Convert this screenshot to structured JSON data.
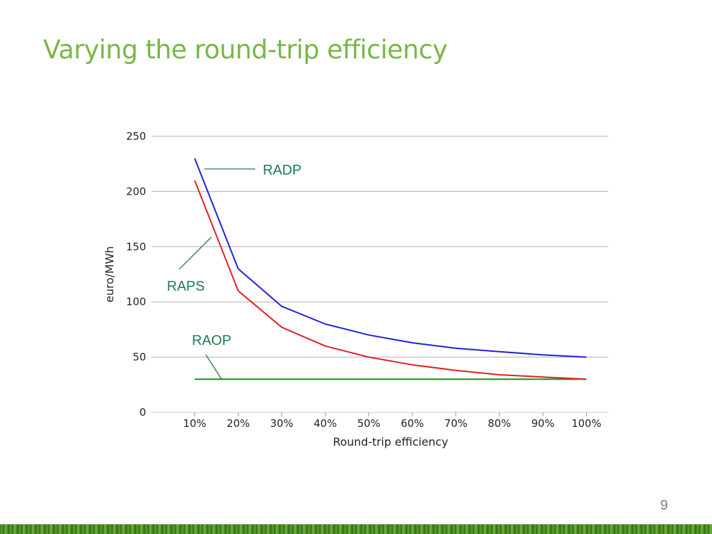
{
  "slide": {
    "title": "Varying the round-trip efficiency",
    "page_number": "9",
    "title_color": "#7ab648",
    "annotation_color": "#1e7b4e"
  },
  "chart_data": {
    "type": "line",
    "title": "",
    "xlabel": "Round-trip efficiency",
    "ylabel": "euro/MWh",
    "categories": [
      "10%",
      "20%",
      "30%",
      "40%",
      "50%",
      "60%",
      "70%",
      "80%",
      "90%",
      "100%"
    ],
    "yticks": [
      "0",
      "50",
      "100",
      "150",
      "200",
      "250"
    ],
    "ylim": [
      0,
      250
    ],
    "grid": true,
    "series": [
      {
        "name": "RADP",
        "color": "#1f1fd6",
        "values": [
          230,
          130,
          96,
          80,
          70,
          63,
          58,
          55,
          52,
          50
        ]
      },
      {
        "name": "RAPS",
        "color": "#e02020",
        "values": [
          210,
          110,
          77,
          60,
          50,
          43,
          38,
          34,
          32,
          30
        ]
      },
      {
        "name": "RAOP",
        "color": "#1a8a1a",
        "values": [
          30,
          30,
          30,
          30,
          30,
          30,
          30,
          30,
          30,
          30
        ]
      }
    ],
    "annotations": [
      "RADP",
      "RAPS",
      "RAOP"
    ]
  }
}
